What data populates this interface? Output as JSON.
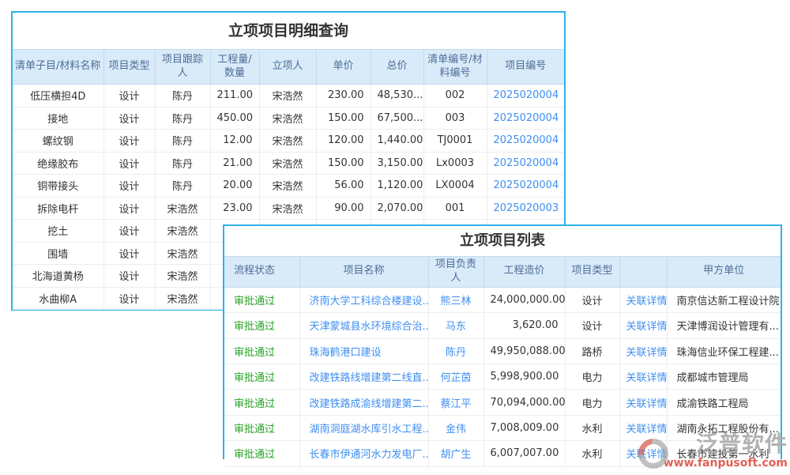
{
  "colors": {
    "panel_border": "#2db3e8",
    "header_bg": "#d9ebf9",
    "header_text": "#4f6d96",
    "link_blue": "#3f8ff2",
    "status_green": "#27a327",
    "body_text": "#333333",
    "watermark_red": "#e0493d",
    "watermark_grey": "#a8a8a8"
  },
  "detail_table": {
    "title": "立项项目明细查询",
    "columns": [
      "清单子目/材料名称",
      "项目类型",
      "项目跟踪人",
      "工程量/数量",
      "立项人",
      "单价",
      "总价",
      "清单编号/材料编号",
      "项目编号"
    ],
    "rows": [
      [
        "低压横担4D",
        "设计",
        "陈丹",
        "211.00",
        "宋浩然",
        "230.00",
        "48,530...",
        "002",
        "2025020004"
      ],
      [
        "接地",
        "设计",
        "陈丹",
        "450.00",
        "宋浩然",
        "150.00",
        "67,500...",
        "003",
        "2025020004"
      ],
      [
        "螺纹钢",
        "设计",
        "陈丹",
        "12.00",
        "宋浩然",
        "120.00",
        "1,440.00",
        "TJ0001",
        "2025020004"
      ],
      [
        "绝缘胶布",
        "设计",
        "陈丹",
        "21.00",
        "宋浩然",
        "150.00",
        "3,150.00",
        "Lx0003",
        "2025020004"
      ],
      [
        "铜带接头",
        "设计",
        "陈丹",
        "20.00",
        "宋浩然",
        "56.00",
        "1,120.00",
        "LX0004",
        "2025020004"
      ],
      [
        "拆除电杆",
        "设计",
        "宋浩然",
        "23.00",
        "宋浩然",
        "90.00",
        "2,070.00",
        "001",
        "2025020003"
      ],
      [
        "挖土",
        "设计",
        "宋浩然",
        "",
        "",
        "",
        "",
        "",
        ""
      ],
      [
        "围墙",
        "设计",
        "宋浩然",
        "",
        "",
        "",
        "",
        "",
        ""
      ],
      [
        "北海道黄杨",
        "设计",
        "宋浩然",
        "",
        "",
        "",
        "",
        "",
        ""
      ],
      [
        "水曲柳A",
        "设计",
        "宋浩然",
        "",
        "",
        "",
        "",
        "",
        ""
      ]
    ]
  },
  "list_table": {
    "title": "立项项目列表",
    "columns": [
      "流程状态",
      "项目名称",
      "项目负责人",
      "工程造价",
      "项目类型",
      "",
      "甲方单位"
    ],
    "rows": [
      [
        "审批通过",
        "济南大学工科综合楼建设...",
        "熊三林",
        "24,000,000.00",
        "设计",
        "关联详情",
        "南京信达新工程设计院"
      ],
      [
        "审批通过",
        "天津蒙城县水环境综合治...",
        "马东",
        "3,620.00",
        "设计",
        "关联详情",
        "天津博润设计管理有..."
      ],
      [
        "审批通过",
        "珠海鹤港口建设",
        "陈丹",
        "49,950,088.00",
        "路桥",
        "关联详情",
        "珠海信业环保工程建..."
      ],
      [
        "审批通过",
        "改建铁路线增建第二线直...",
        "何芷茵",
        "5,998,900.00",
        "电力",
        "关联详情",
        "成都城市管理局"
      ],
      [
        "审批通过",
        "改建铁路成渝线增建第二...",
        "蔡江平",
        "70,094,000.00",
        "电力",
        "关联详情",
        "成渝铁路工程局"
      ],
      [
        "审批通过",
        "湖南洞庭湖水库引水工程...",
        "金伟",
        "7,008,009.00",
        "水利",
        "关联详情",
        "湖南永拓工程股份有..."
      ],
      [
        "审批通过",
        "长春市伊通河水力发电厂...",
        "胡广生",
        "6,007,007.00",
        "水利",
        "关联详情",
        "长春市建投第一水利"
      ]
    ]
  },
  "watermark": {
    "brand": "泛普软件",
    "url": "www.fanpusoft.com"
  }
}
